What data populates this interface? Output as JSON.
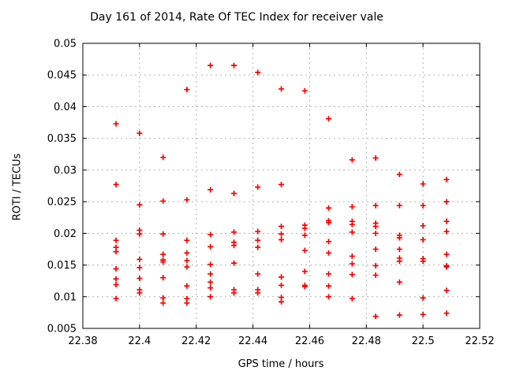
{
  "window": {
    "background": "#ffffff"
  },
  "chart_data": {
    "type": "scatter",
    "title": "Day 161 of 2014, Rate Of TEC Index for receiver vale",
    "xlabel": "GPS time / hours",
    "ylabel": "ROTI / TECUs",
    "xlim": [
      22.38,
      22.52
    ],
    "ylim": [
      0.005,
      0.05
    ],
    "xtick_labels": [
      "22.38",
      "22.4",
      "22.42",
      "22.44",
      "22.46",
      "22.48",
      "22.5",
      "22.52"
    ],
    "ytick_labels": [
      "0.005",
      "0.01",
      "0.015",
      "0.02",
      "0.025",
      "0.03",
      "0.035",
      "0.04",
      "0.045",
      "0.05"
    ],
    "grid": true,
    "legend": "none",
    "colors": {
      "marker": "#ff0000",
      "grid": "#b4b4b4",
      "axis": "#000000",
      "background": "#ffffff"
    },
    "marker": {
      "symbol": "plus",
      "size": 7,
      "stroke_width": 1.7
    },
    "series": [
      {
        "name": "ROTI",
        "points": [
          [
            22.3917,
            0.0373
          ],
          [
            22.3917,
            0.0277
          ],
          [
            22.3917,
            0.0189
          ],
          [
            22.3917,
            0.0178
          ],
          [
            22.3917,
            0.0171
          ],
          [
            22.3917,
            0.0144
          ],
          [
            22.3917,
            0.0128
          ],
          [
            22.3917,
            0.0119
          ],
          [
            22.3917,
            0.0097
          ],
          [
            22.4,
            0.0358
          ],
          [
            22.4,
            0.0245
          ],
          [
            22.4,
            0.0205
          ],
          [
            22.4,
            0.0199
          ],
          [
            22.4,
            0.0159
          ],
          [
            22.4,
            0.0146
          ],
          [
            22.4,
            0.0129
          ],
          [
            22.4,
            0.0111
          ],
          [
            22.4,
            0.0106
          ],
          [
            22.4083,
            0.032
          ],
          [
            22.4083,
            0.0251
          ],
          [
            22.4083,
            0.0199
          ],
          [
            22.4083,
            0.0167
          ],
          [
            22.4083,
            0.0158
          ],
          [
            22.4083,
            0.0155
          ],
          [
            22.4083,
            0.013
          ],
          [
            22.4083,
            0.0098
          ],
          [
            22.4083,
            0.009
          ],
          [
            22.4167,
            0.0427
          ],
          [
            22.4167,
            0.0253
          ],
          [
            22.4167,
            0.0189
          ],
          [
            22.4167,
            0.0169
          ],
          [
            22.4167,
            0.0157
          ],
          [
            22.4167,
            0.0147
          ],
          [
            22.4167,
            0.0117
          ],
          [
            22.4167,
            0.0097
          ],
          [
            22.4167,
            0.009
          ],
          [
            22.425,
            0.0465
          ],
          [
            22.425,
            0.0269
          ],
          [
            22.425,
            0.0198
          ],
          [
            22.425,
            0.0179
          ],
          [
            22.425,
            0.0151
          ],
          [
            22.425,
            0.0136
          ],
          [
            22.425,
            0.0123
          ],
          [
            22.425,
            0.0114
          ],
          [
            22.425,
            0.01
          ],
          [
            22.4333,
            0.0465
          ],
          [
            22.4333,
            0.0263
          ],
          [
            22.4333,
            0.0202
          ],
          [
            22.4333,
            0.0186
          ],
          [
            22.4333,
            0.0181
          ],
          [
            22.4333,
            0.0153
          ],
          [
            22.4333,
            0.0111
          ],
          [
            22.4333,
            0.0106
          ],
          [
            22.4417,
            0.0454
          ],
          [
            22.4417,
            0.0273
          ],
          [
            22.4417,
            0.0203
          ],
          [
            22.4417,
            0.0189
          ],
          [
            22.4417,
            0.0178
          ],
          [
            22.4417,
            0.0136
          ],
          [
            22.4417,
            0.0111
          ],
          [
            22.4417,
            0.0106
          ],
          [
            22.45,
            0.0428
          ],
          [
            22.45,
            0.0277
          ],
          [
            22.45,
            0.0211
          ],
          [
            22.45,
            0.0199
          ],
          [
            22.45,
            0.019
          ],
          [
            22.45,
            0.0131
          ],
          [
            22.45,
            0.0118
          ],
          [
            22.45,
            0.0099
          ],
          [
            22.45,
            0.0092
          ],
          [
            22.4583,
            0.0425
          ],
          [
            22.4583,
            0.0213
          ],
          [
            22.4583,
            0.0208
          ],
          [
            22.4583,
            0.0197
          ],
          [
            22.4583,
            0.0173
          ],
          [
            22.4583,
            0.014
          ],
          [
            22.4583,
            0.0118
          ],
          [
            22.4583,
            0.0116
          ],
          [
            22.4667,
            0.0381
          ],
          [
            22.4667,
            0.024
          ],
          [
            22.4667,
            0.022
          ],
          [
            22.4667,
            0.0217
          ],
          [
            22.4667,
            0.0187
          ],
          [
            22.4667,
            0.0169
          ],
          [
            22.4667,
            0.0136
          ],
          [
            22.4667,
            0.0117
          ],
          [
            22.4667,
            0.01
          ],
          [
            22.475,
            0.0316
          ],
          [
            22.475,
            0.0242
          ],
          [
            22.475,
            0.0219
          ],
          [
            22.475,
            0.0214
          ],
          [
            22.475,
            0.0202
          ],
          [
            22.475,
            0.0164
          ],
          [
            22.475,
            0.0152
          ],
          [
            22.475,
            0.0135
          ],
          [
            22.475,
            0.0097
          ],
          [
            22.4833,
            0.0319
          ],
          [
            22.4833,
            0.0244
          ],
          [
            22.4833,
            0.0216
          ],
          [
            22.4833,
            0.0211
          ],
          [
            22.4833,
            0.02
          ],
          [
            22.4833,
            0.0175
          ],
          [
            22.4833,
            0.0149
          ],
          [
            22.4833,
            0.0134
          ],
          [
            22.4833,
            0.0069
          ],
          [
            22.4917,
            0.0293
          ],
          [
            22.4917,
            0.0244
          ],
          [
            22.4917,
            0.0197
          ],
          [
            22.4917,
            0.0193
          ],
          [
            22.4917,
            0.0175
          ],
          [
            22.4917,
            0.0161
          ],
          [
            22.4917,
            0.0156
          ],
          [
            22.4917,
            0.0123
          ],
          [
            22.4917,
            0.0071
          ],
          [
            22.5,
            0.0278
          ],
          [
            22.5,
            0.0244
          ],
          [
            22.5,
            0.0212
          ],
          [
            22.5,
            0.019
          ],
          [
            22.5,
            0.016
          ],
          [
            22.5,
            0.0156
          ],
          [
            22.5,
            0.0098
          ],
          [
            22.5,
            0.0072
          ],
          [
            22.5083,
            0.0285
          ],
          [
            22.5083,
            0.025
          ],
          [
            22.5083,
            0.0219
          ],
          [
            22.5083,
            0.0203
          ],
          [
            22.5083,
            0.0167
          ],
          [
            22.5083,
            0.0149
          ],
          [
            22.5083,
            0.0147
          ],
          [
            22.5083,
            0.011
          ],
          [
            22.5083,
            0.0074
          ]
        ]
      }
    ]
  }
}
